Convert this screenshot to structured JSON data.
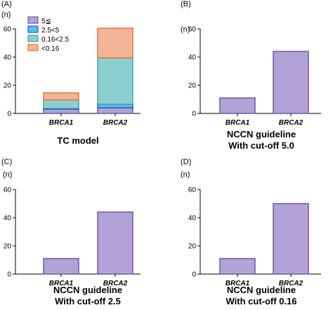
{
  "colors": {
    "c5": "#b3a2d8",
    "c2_5": "#59bdf0",
    "c0_16": "#8ccfd0",
    "clt0_16": "#f2b497",
    "stroke_5": "#6f5aa6",
    "stroke_2_5": "#1e62c8",
    "stroke_0_16": "#4ba6a8",
    "stroke_lt0_16": "#e87a3e",
    "axis": "#000000"
  },
  "chart_data": [
    {
      "id": "A",
      "panel_letter": "(A)",
      "unit_label": "(n)",
      "type": "bar",
      "stacked": true,
      "title_lines": [
        "TC model"
      ],
      "categories": [
        "BRCA1",
        "BRCA2"
      ],
      "ylim": [
        0,
        60
      ],
      "yticks": [
        "0",
        "20",
        "40",
        "60"
      ],
      "legend": {
        "placement": "top-left"
      },
      "series": [
        {
          "name": "5≦",
          "color_key": "c5",
          "stroke_key": "stroke_5",
          "values": [
            3,
            4
          ]
        },
        {
          "name": "2.5<5",
          "color_key": "c2_5",
          "stroke_key": "stroke_2_5",
          "values": [
            0.6,
            2.5
          ]
        },
        {
          "name": "0.16<2.5",
          "color_key": "c0_16",
          "stroke_key": "stroke_0_16",
          "values": [
            6,
            33
          ]
        },
        {
          "name": "<0.16",
          "color_key": "clt0_16",
          "stroke_key": "stroke_lt0_16",
          "values": [
            5,
            21
          ]
        }
      ]
    },
    {
      "id": "B",
      "panel_letter": "(B)",
      "unit_label": "(n)",
      "type": "bar",
      "stacked": false,
      "title_lines": [
        "NCCN guideline",
        "With cut-off 5.0"
      ],
      "categories": [
        "BRCA1",
        "BRCA2"
      ],
      "ylim": [
        0,
        60
      ],
      "yticks": [
        "0",
        "20",
        "40",
        "60"
      ],
      "series": [
        {
          "color_key": "c5",
          "stroke_key": "stroke_5",
          "values": [
            11,
            44
          ]
        }
      ]
    },
    {
      "id": "C",
      "panel_letter": "(C)",
      "unit_label": "(n)",
      "type": "bar",
      "stacked": false,
      "title_lines": [
        "NCCN guideline",
        "With cut-off 2.5"
      ],
      "categories": [
        "BRCA1",
        "BRCA2"
      ],
      "ylim": [
        0,
        60
      ],
      "yticks": [
        "0",
        "20",
        "40",
        "60"
      ],
      "series": [
        {
          "color_key": "c5",
          "stroke_key": "stroke_5",
          "values": [
            11,
            44
          ]
        }
      ]
    },
    {
      "id": "D",
      "panel_letter": "(D)",
      "unit_label": "(n)",
      "type": "bar",
      "stacked": false,
      "title_lines": [
        "NCCN guideline",
        "With cut-off 0.16"
      ],
      "categories": [
        "BRCA1",
        "BRCA2"
      ],
      "ylim": [
        0,
        60
      ],
      "yticks": [
        "0",
        "20",
        "40",
        "60"
      ],
      "series": [
        {
          "color_key": "c5",
          "stroke_key": "stroke_5",
          "values": [
            11,
            50
          ]
        }
      ]
    }
  ]
}
